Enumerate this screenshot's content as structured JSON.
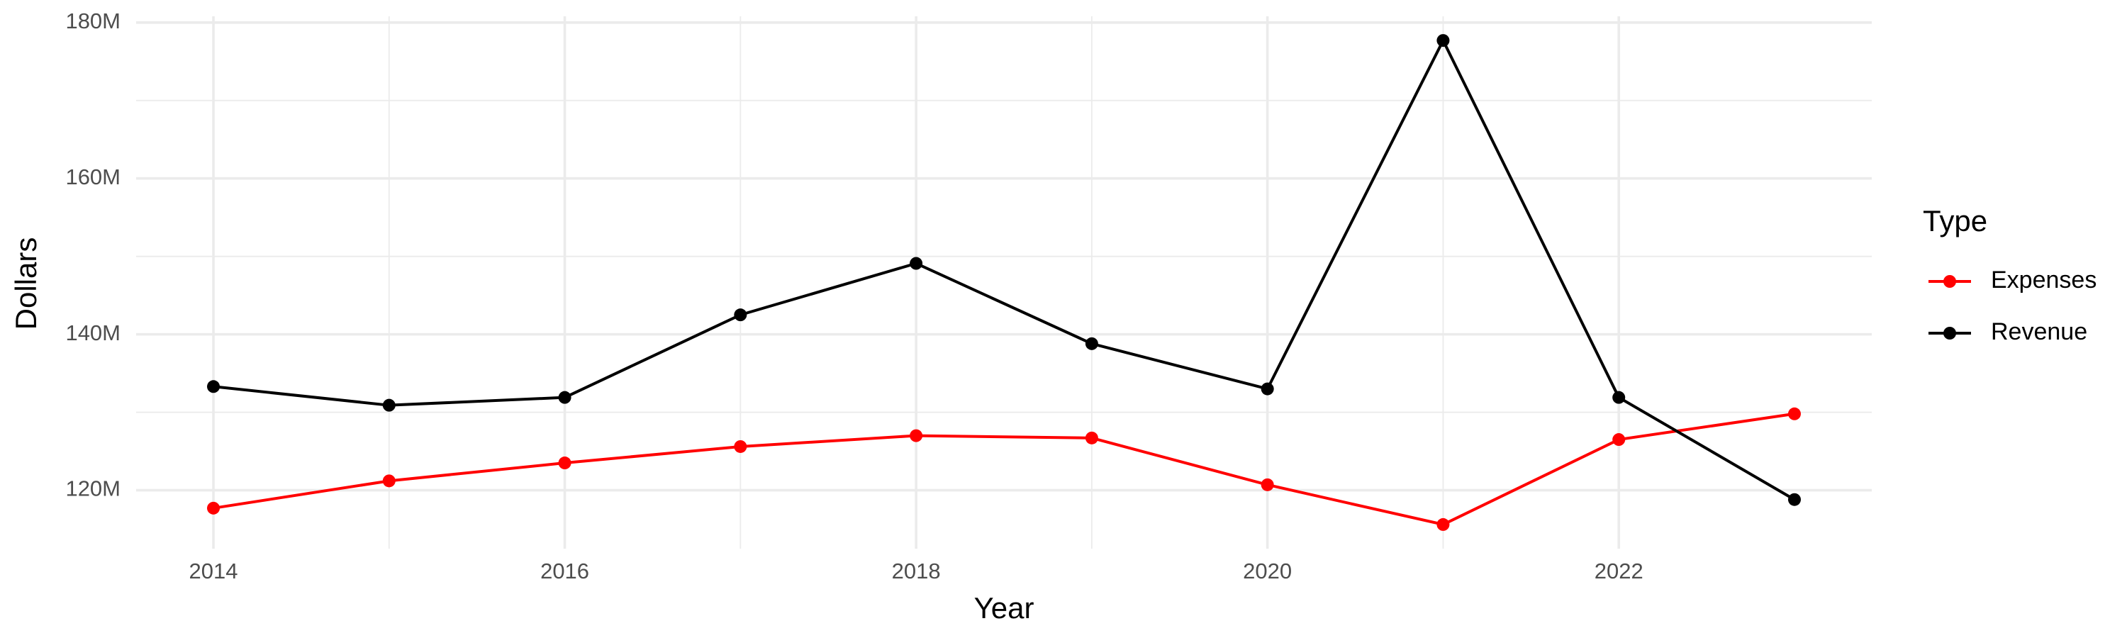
{
  "chart_data": {
    "type": "line",
    "x_label": "Year",
    "y_label": "Dollars",
    "x": [
      2014,
      2015,
      2016,
      2017,
      2018,
      2019,
      2020,
      2021,
      2022,
      2023
    ],
    "series": [
      {
        "name": "Expenses",
        "color": "#ff0000",
        "values": [
          117700000,
          121200000,
          123500000,
          125600000,
          127000000,
          126700000,
          120700000,
          115600000,
          126500000,
          129800000
        ]
      },
      {
        "name": "Revenue",
        "color": "#000000",
        "values": [
          133300000,
          130900000,
          131900000,
          142500000,
          149100000,
          138800000,
          133000000,
          177700000,
          131900000,
          118800000
        ]
      }
    ],
    "xlim": [
      2013.56,
      2023.44
    ],
    "xticks": [
      2014,
      2016,
      2018,
      2020,
      2022
    ],
    "ylim": [
      112500000,
      180800000
    ],
    "yticks": [
      {
        "value": 120000000,
        "label": "120M"
      },
      {
        "value": 140000000,
        "label": "140M"
      },
      {
        "value": 160000000,
        "label": "160M"
      },
      {
        "value": 180000000,
        "label": "180M"
      }
    ],
    "grid": true,
    "minor_grid": true,
    "legend_title": "Type",
    "legend_position": "right"
  }
}
